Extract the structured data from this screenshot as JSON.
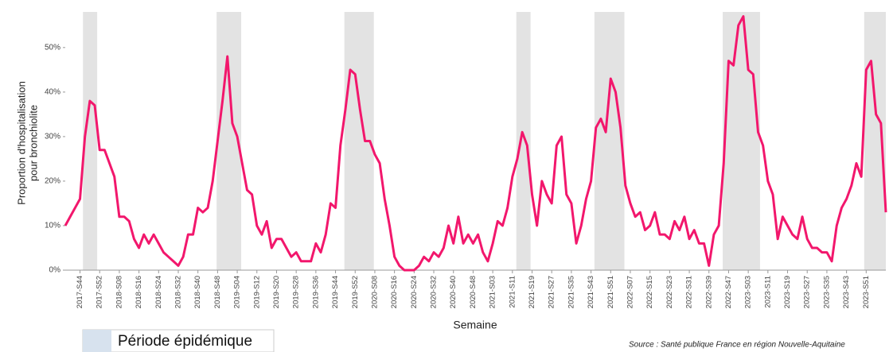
{
  "chart_data": {
    "type": "line",
    "y_label": [
      "Proportion d'hospitalisation",
      "pour bronchiolite"
    ],
    "x_label": "Semaine",
    "legend_label": "Période épidémique",
    "legend_color": "#d7e2ee",
    "source": "Source : Santé publique France en région Nouvelle-Aquitaine",
    "categories": [
      null,
      null,
      null,
      "2017-S44",
      null,
      null,
      null,
      "2017-S52",
      null,
      null,
      null,
      "2018-S08",
      null,
      null,
      null,
      "2018-S16",
      null,
      null,
      null,
      "2018-S24",
      null,
      null,
      null,
      "2018-S32",
      null,
      null,
      null,
      "2018-S40",
      null,
      null,
      null,
      "2018-S48",
      null,
      null,
      null,
      "2019-S04",
      null,
      null,
      null,
      "2019-S12",
      null,
      null,
      null,
      "2019-S20",
      null,
      null,
      null,
      "2019-S28",
      null,
      null,
      null,
      "2019-S36",
      null,
      null,
      null,
      "2019-S44",
      null,
      null,
      null,
      "2019-S52",
      null,
      null,
      null,
      "2020-S08",
      null,
      null,
      null,
      "2020-S16",
      null,
      null,
      null,
      "2020-S24",
      null,
      null,
      null,
      "2020-S32",
      null,
      null,
      null,
      "2020-S40",
      null,
      null,
      null,
      "2020-S48",
      null,
      null,
      null,
      "2021-S03",
      null,
      null,
      null,
      "2021-S11",
      null,
      null,
      null,
      "2021-S19",
      null,
      null,
      null,
      "2021-S27",
      null,
      null,
      null,
      "2021-S35",
      null,
      null,
      null,
      "2021-S43",
      null,
      null,
      null,
      "2021-S51",
      null,
      null,
      null,
      "2022-S07",
      null,
      null,
      null,
      "2022-S15",
      null,
      null,
      null,
      "2022-S23",
      null,
      null,
      null,
      "2022-S31",
      null,
      null,
      null,
      "2022-S39",
      null,
      null,
      null,
      "2022-S47",
      null,
      null,
      null,
      "2023-S03",
      null,
      null,
      null,
      "2023-S11",
      null,
      null,
      null,
      "2023-S19",
      null,
      null,
      null,
      "2023-S27",
      null,
      null,
      null,
      "2023-S35",
      null,
      null,
      null,
      "2023-S43",
      null,
      null,
      null,
      "2023-S51",
      null,
      null,
      null,
      null
    ],
    "series": [
      {
        "name": "Proportion d'hospitalisation pour bronchiolite",
        "color": "#f2176c",
        "values": [
          10,
          12,
          14,
          16,
          30,
          38,
          37,
          27,
          27,
          24,
          21,
          12,
          12,
          11,
          7,
          5,
          8,
          6,
          8,
          6,
          4,
          3,
          2,
          1,
          3,
          8,
          8,
          14,
          13,
          14,
          20,
          29,
          38,
          48,
          33,
          30,
          24,
          18,
          17,
          10,
          8,
          11,
          5,
          7,
          7,
          5,
          3,
          4,
          2,
          2,
          2,
          6,
          4,
          8,
          15,
          14,
          28,
          36,
          45,
          44,
          36,
          29,
          29,
          26,
          24,
          16,
          10,
          3,
          1,
          0,
          0,
          0,
          1,
          3,
          2,
          4,
          3,
          5,
          10,
          6,
          12,
          6,
          8,
          6,
          8,
          4,
          2,
          6,
          11,
          10,
          14,
          21,
          25,
          31,
          28,
          17,
          10,
          20,
          17,
          15,
          28,
          30,
          17,
          15,
          6,
          10,
          16,
          20,
          32,
          34,
          31,
          43,
          40,
          32,
          19,
          15,
          12,
          13,
          9,
          10,
          13,
          8,
          8,
          7,
          11,
          9,
          12,
          7,
          9,
          6,
          6,
          1,
          8,
          10,
          24,
          47,
          46,
          55,
          57,
          45,
          44,
          31,
          28,
          20,
          17,
          7,
          12,
          10,
          8,
          7,
          12,
          7,
          5,
          5,
          4,
          4,
          2,
          10,
          14,
          16,
          19,
          24,
          21,
          45,
          47,
          35,
          33,
          13
        ]
      }
    ],
    "epidemic_periods": [
      {
        "start": 3.6,
        "end": 6.5
      },
      {
        "start": 30.8,
        "end": 35.8
      },
      {
        "start": 56.8,
        "end": 62.8
      },
      {
        "start": 91.8,
        "end": 94.7
      },
      {
        "start": 107.7,
        "end": 113.8
      },
      {
        "start": 133.8,
        "end": 141.4
      },
      {
        "start": 162.6,
        "end": 167
      }
    ],
    "period_color": "#e3e3e3",
    "ylim": [
      0,
      58
    ],
    "yticks": [
      {
        "value": 0,
        "label": "0%"
      },
      {
        "value": 10,
        "label": "10%"
      },
      {
        "value": 20,
        "label": "20%"
      },
      {
        "value": 30,
        "label": "30%"
      },
      {
        "value": 40,
        "label": "40%"
      },
      {
        "value": 50,
        "label": "50%"
      }
    ]
  }
}
